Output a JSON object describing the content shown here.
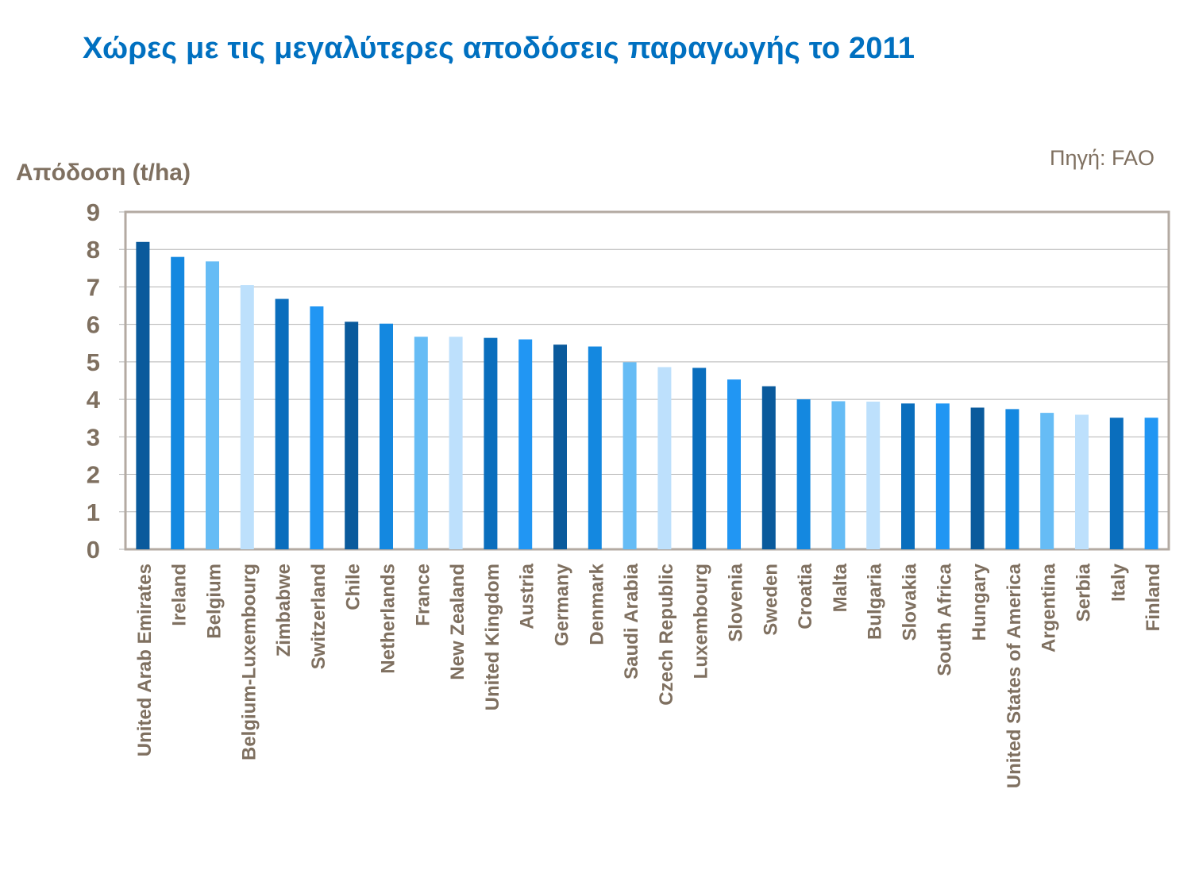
{
  "page": {
    "title": "Χώρες με τις μεγαλύτερες αποδόσεις παραγωγής το 2011",
    "source": "Πηγή: FAO"
  },
  "chart_data": {
    "type": "bar",
    "title": "Χώρες με τις μεγαλύτερες αποδόσεις παραγωγής το 2011",
    "xlabel": "",
    "ylabel": "Απόδοση (t/ha)",
    "ylim": [
      0,
      9
    ],
    "yticks": [
      0,
      1,
      2,
      3,
      4,
      5,
      6,
      7,
      8,
      9
    ],
    "grid": true,
    "legend": "none",
    "categories": [
      "United Arab Emirates",
      "Ireland",
      "Belgium",
      "Belgium-Luxembourg",
      "Zimbabwe",
      "Switzerland",
      "Chile",
      "Netherlands",
      "France",
      "New Zealand",
      "United Kingdom",
      "Austria",
      "Germany",
      "Denmark",
      "Saudi Arabia",
      "Czech Republic",
      "Luxembourg",
      "Slovenia",
      "Sweden",
      "Croatia",
      "Malta",
      "Bulgaria",
      "Slovakia",
      "South Africa",
      "Hungary",
      "United States of America",
      "Argentina",
      "Serbia",
      "Italy",
      "Finland"
    ],
    "values": [
      8.2,
      7.8,
      7.68,
      7.05,
      6.68,
      6.48,
      6.07,
      6.02,
      5.67,
      5.67,
      5.64,
      5.6,
      5.46,
      5.41,
      4.99,
      4.86,
      4.84,
      4.53,
      4.35,
      4.0,
      3.95,
      3.94,
      3.89,
      3.89,
      3.78,
      3.74,
      3.64,
      3.59,
      3.51,
      3.51
    ],
    "colors": {
      "palette": [
        "#0a5a9c",
        "#1488e0",
        "#66bcf5",
        "#bde0fc",
        "#0a6ebd",
        "#2196f3"
      ],
      "axis_text": "#7f7060",
      "gridline": "#b3b3b3",
      "plot_border": "#b3aaa2"
    }
  }
}
